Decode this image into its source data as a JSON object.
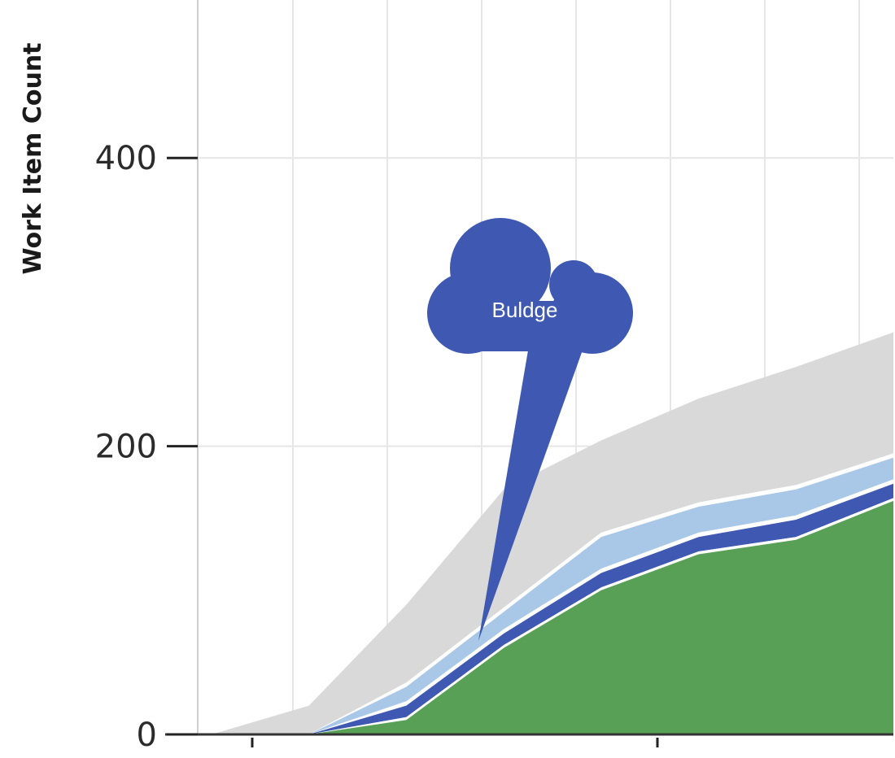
{
  "chart_data": {
    "type": "area",
    "stacked": true,
    "ylabel": "Work Item Count",
    "xlabel": "",
    "ylim": [
      0,
      500
    ],
    "yticks": [
      0,
      200,
      400
    ],
    "x": [
      0,
      1,
      2,
      3,
      4,
      5,
      6,
      7
    ],
    "series": [
      {
        "color": "#58a055",
        "values": [
          0,
          0,
          10,
          60,
          100,
          125,
          135,
          162
        ]
      },
      {
        "color": "#ffffff",
        "values": [
          0,
          0,
          2,
          2,
          2,
          2,
          2,
          2
        ]
      },
      {
        "color": "#3f59b3",
        "values": [
          0,
          0,
          8,
          8,
          10,
          10,
          12,
          10
        ]
      },
      {
        "color": "#ffffff",
        "values": [
          0,
          0,
          3,
          3,
          3,
          3,
          3,
          3
        ]
      },
      {
        "color": "#a9c7e6",
        "values": [
          0,
          0,
          10,
          12,
          22,
          18,
          18,
          15
        ]
      },
      {
        "color": "#ffffff",
        "values": [
          0,
          0,
          3,
          3,
          3,
          3,
          3,
          3
        ]
      },
      {
        "color": "#d9d9d9",
        "values": [
          0,
          20,
          54,
          82,
          64,
          72,
          82,
          84
        ]
      }
    ],
    "annotation": {
      "text": "Buldge",
      "x": 3,
      "y": 70
    },
    "grid": true
  }
}
